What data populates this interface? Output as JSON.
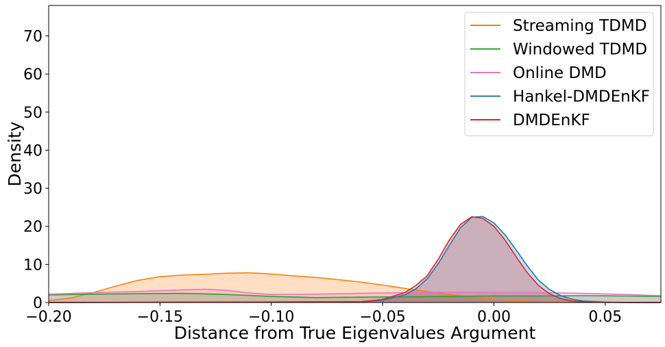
{
  "chart_data": {
    "type": "area",
    "title": "",
    "xlabel": "Distance from True Eigenvalues Argument",
    "ylabel": "Density",
    "xlim": [
      -0.2,
      0.075
    ],
    "ylim": [
      0,
      78
    ],
    "xticks": [
      -0.2,
      -0.15,
      -0.1,
      -0.05,
      0.0,
      0.05
    ],
    "xtick_labels": [
      "−0.20",
      "−0.15",
      "−0.10",
      "−0.05",
      "0.00",
      "0.05"
    ],
    "yticks": [
      0,
      10,
      20,
      30,
      40,
      50,
      60,
      70
    ],
    "ytick_labels": [
      "0",
      "10",
      "20",
      "30",
      "40",
      "50",
      "60",
      "70"
    ],
    "grid": false,
    "legend_position": "top-right",
    "series": [
      {
        "name": "Streaming TDMD",
        "color": "#ff7f0e",
        "x": [
          -0.2,
          -0.19,
          -0.18,
          -0.17,
          -0.16,
          -0.15,
          -0.14,
          -0.13,
          -0.12,
          -0.11,
          -0.1,
          -0.09,
          -0.08,
          -0.07,
          -0.06,
          -0.05,
          -0.04,
          -0.03,
          -0.02,
          -0.01,
          0.0,
          0.01,
          0.02,
          0.03,
          0.04,
          0.05,
          0.06,
          0.075
        ],
        "y": [
          0.5,
          1.2,
          2.6,
          4.3,
          5.8,
          6.8,
          7.2,
          7.4,
          7.7,
          7.8,
          7.5,
          7.0,
          6.6,
          6.0,
          5.4,
          4.6,
          3.7,
          2.9,
          2.1,
          1.4,
          0.9,
          0.5,
          0.3,
          0.15,
          0.1,
          0.05,
          0.0,
          0.0
        ]
      },
      {
        "name": "Windowed TDMD",
        "color": "#2ca02c",
        "x": [
          -0.2,
          -0.18,
          -0.16,
          -0.14,
          -0.12,
          -0.1,
          -0.08,
          -0.06,
          -0.04,
          -0.02,
          0.0,
          0.02,
          0.04,
          0.06,
          0.075
        ],
        "y": [
          2.0,
          2.2,
          2.3,
          2.4,
          2.1,
          1.6,
          1.3,
          1.4,
          1.5,
          1.6,
          1.7,
          1.7,
          1.8,
          1.7,
          1.6
        ]
      },
      {
        "name": "Online DMD",
        "color": "#e377c2",
        "x": [
          -0.2,
          -0.18,
          -0.16,
          -0.14,
          -0.13,
          -0.12,
          -0.11,
          -0.1,
          -0.08,
          -0.06,
          -0.04,
          -0.02,
          0.0,
          0.02,
          0.04,
          0.06,
          0.075
        ],
        "y": [
          2.2,
          2.6,
          2.9,
          3.3,
          3.5,
          3.2,
          2.5,
          2.1,
          2.2,
          2.4,
          2.6,
          2.7,
          2.7,
          2.6,
          2.4,
          2.1,
          1.8
        ]
      },
      {
        "name": "Hankel-DMDEnKF",
        "color": "#1f77b4",
        "x": [
          -0.2,
          -0.06,
          -0.05,
          -0.04,
          -0.035,
          -0.03,
          -0.025,
          -0.02,
          -0.015,
          -0.01,
          -0.005,
          0.0,
          0.005,
          0.01,
          0.015,
          0.02,
          0.025,
          0.03,
          0.035,
          0.04,
          0.05,
          0.06,
          0.075
        ],
        "y": [
          0.0,
          0.2,
          0.6,
          2.0,
          3.6,
          6.2,
          10.2,
          15.0,
          19.6,
          22.4,
          22.6,
          20.9,
          17.8,
          13.8,
          9.6,
          5.9,
          3.4,
          1.8,
          0.9,
          0.4,
          0.1,
          0.0,
          0.0
        ]
      },
      {
        "name": "DMDEnKF",
        "color": "#d62728",
        "x": [
          -0.2,
          -0.06,
          -0.05,
          -0.04,
          -0.035,
          -0.03,
          -0.025,
          -0.02,
          -0.015,
          -0.01,
          -0.005,
          0.0,
          0.005,
          0.01,
          0.015,
          0.02,
          0.025,
          0.03,
          0.035,
          0.04,
          0.05,
          0.06,
          0.075
        ],
        "y": [
          0.0,
          0.2,
          0.8,
          2.6,
          4.5,
          7.0,
          11.4,
          16.4,
          20.5,
          22.5,
          22.1,
          20.0,
          16.4,
          12.0,
          7.8,
          4.5,
          2.3,
          1.0,
          0.4,
          0.2,
          0.05,
          0.0,
          0.0
        ]
      }
    ]
  }
}
